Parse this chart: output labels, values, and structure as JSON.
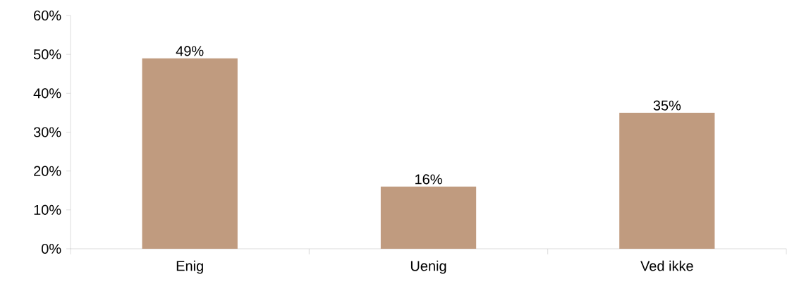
{
  "chart_data": {
    "type": "bar",
    "categories": [
      "Enig",
      "Uenig",
      "Ved ikke"
    ],
    "values": [
      49,
      16,
      35
    ],
    "value_labels": [
      "49%",
      "16%",
      "35%"
    ],
    "color": "#c09b7f",
    "ylim": [
      0,
      60
    ],
    "yticks": [
      {
        "value": 0,
        "label": "0%"
      },
      {
        "value": 10,
        "label": "10%"
      },
      {
        "value": 20,
        "label": "20%"
      },
      {
        "value": 30,
        "label": "30%"
      },
      {
        "value": 40,
        "label": "40%"
      },
      {
        "value": 50,
        "label": "50%"
      },
      {
        "value": 60,
        "label": "60%"
      }
    ],
    "grid": false
  }
}
